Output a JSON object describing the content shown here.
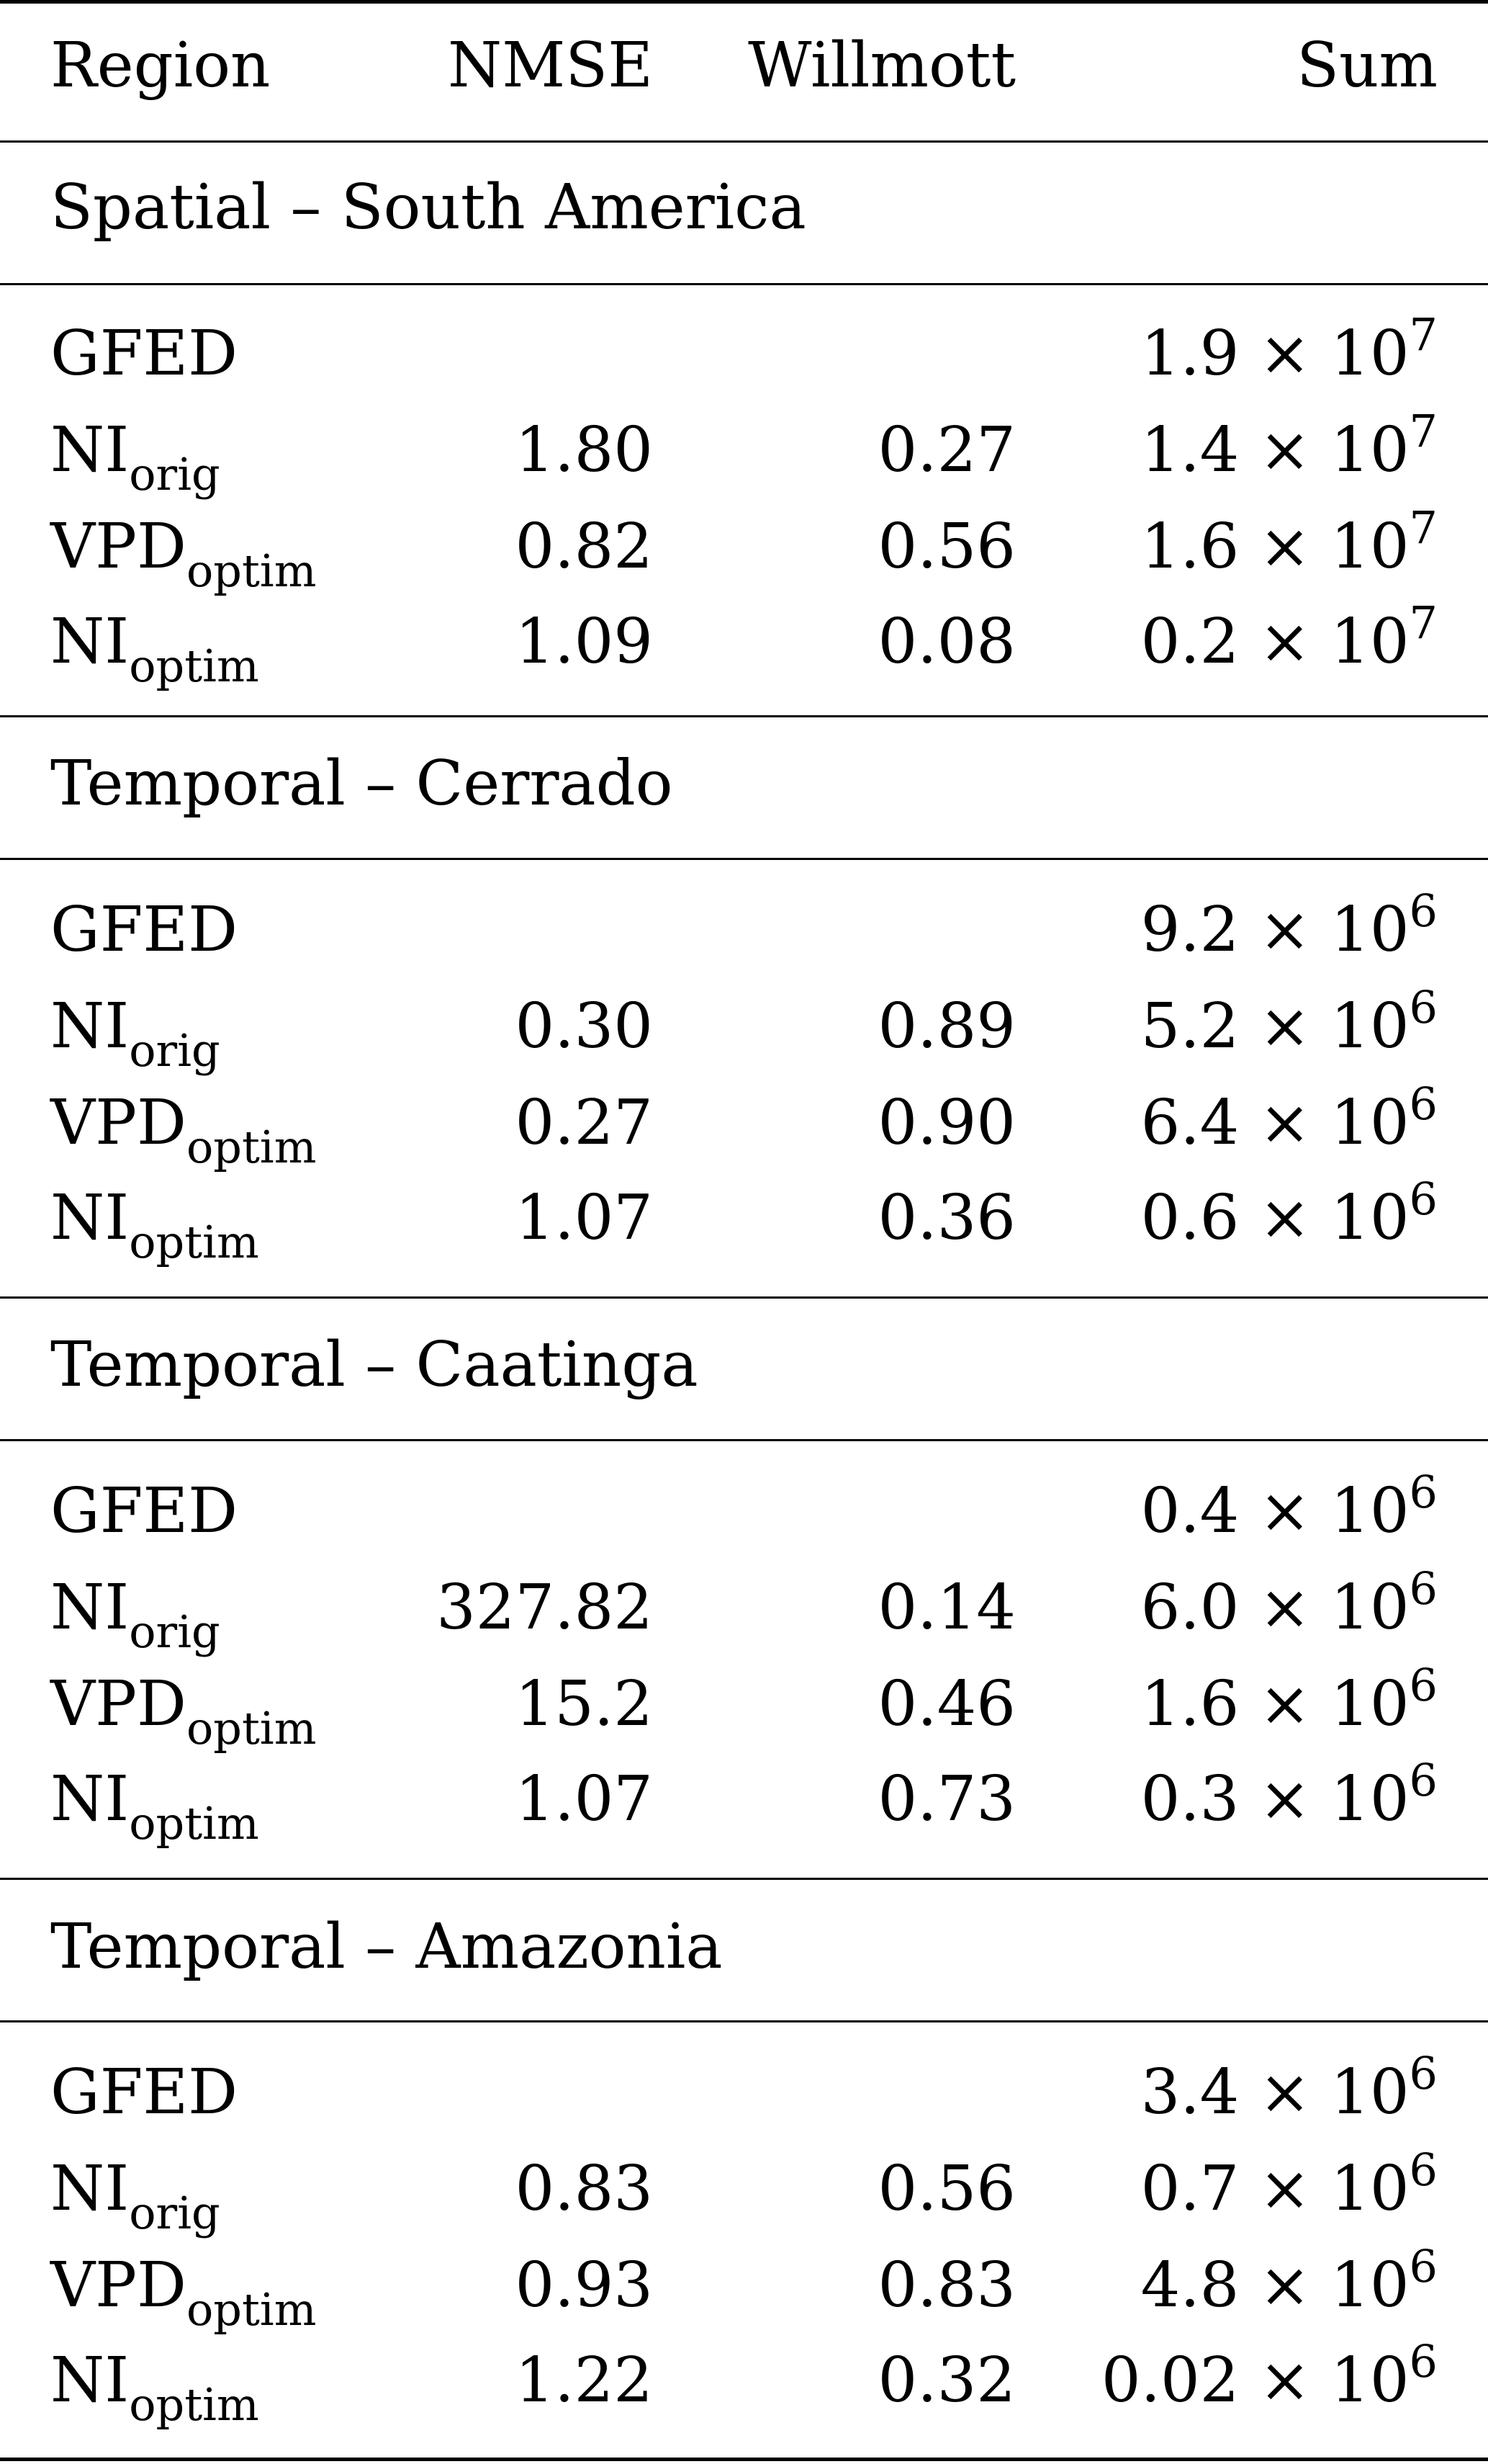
{
  "table": {
    "headers": [
      "Region",
      "NMSE",
      "Willmott",
      "Sum"
    ],
    "sections": [
      {
        "title": "Spatial – South America",
        "rows": [
          {
            "model": "GFED",
            "sub": "",
            "nmse": "",
            "willmott": "",
            "sum_base": "1.9 × 10",
            "sum_exp": "7"
          },
          {
            "model": "NI",
            "sub": "orig",
            "nmse": "1.80",
            "willmott": "0.27",
            "sum_base": "1.4 × 10",
            "sum_exp": "7"
          },
          {
            "model": "VPD",
            "sub": "optim",
            "nmse": "0.82",
            "willmott": "0.56",
            "sum_base": "1.6 × 10",
            "sum_exp": "7"
          },
          {
            "model": "NI",
            "sub": "optim",
            "nmse": "1.09",
            "willmott": "0.08",
            "sum_base": "0.2 × 10",
            "sum_exp": "7"
          }
        ]
      },
      {
        "title": "Temporal – Cerrado",
        "rows": [
          {
            "model": "GFED",
            "sub": "",
            "nmse": "",
            "willmott": "",
            "sum_base": "9.2 × 10",
            "sum_exp": "6"
          },
          {
            "model": "NI",
            "sub": "orig",
            "nmse": "0.30",
            "willmott": "0.89",
            "sum_base": "5.2 × 10",
            "sum_exp": "6"
          },
          {
            "model": "VPD",
            "sub": "optim",
            "nmse": "0.27",
            "willmott": "0.90",
            "sum_base": "6.4 × 10",
            "sum_exp": "6"
          },
          {
            "model": "NI",
            "sub": "optim",
            "nmse": "1.07",
            "willmott": "0.36",
            "sum_base": "0.6 × 10",
            "sum_exp": "6"
          }
        ]
      },
      {
        "title": "Temporal – Caatinga",
        "rows": [
          {
            "model": "GFED",
            "sub": "",
            "nmse": "",
            "willmott": "",
            "sum_base": "0.4 × 10",
            "sum_exp": "6"
          },
          {
            "model": "NI",
            "sub": "orig",
            "nmse": "327.82",
            "willmott": "0.14",
            "sum_base": "6.0 × 10",
            "sum_exp": "6"
          },
          {
            "model": "VPD",
            "sub": "optim",
            "nmse": "15.2",
            "willmott": "0.46",
            "sum_base": "1.6 × 10",
            "sum_exp": "6"
          },
          {
            "model": "NI",
            "sub": "optim",
            "nmse": "1.07",
            "willmott": "0.73",
            "sum_base": "0.3 × 10",
            "sum_exp": "6"
          }
        ]
      },
      {
        "title": "Temporal – Amazonia",
        "rows": [
          {
            "model": "GFED",
            "sub": "",
            "nmse": "",
            "willmott": "",
            "sum_base": "3.4 × 10",
            "sum_exp": "6"
          },
          {
            "model": "NI",
            "sub": "orig",
            "nmse": "0.83",
            "willmott": "0.56",
            "sum_base": "0.7 × 10",
            "sum_exp": "6"
          },
          {
            "model": "VPD",
            "sub": "optim",
            "nmse": "0.93",
            "willmott": "0.83",
            "sum_base": "4.8 × 10",
            "sum_exp": "6"
          },
          {
            "model": "NI",
            "sub": "optim",
            "nmse": "1.22",
            "willmott": "0.32",
            "sum_base": "0.02 × 10",
            "sum_exp": "6"
          }
        ]
      }
    ]
  }
}
